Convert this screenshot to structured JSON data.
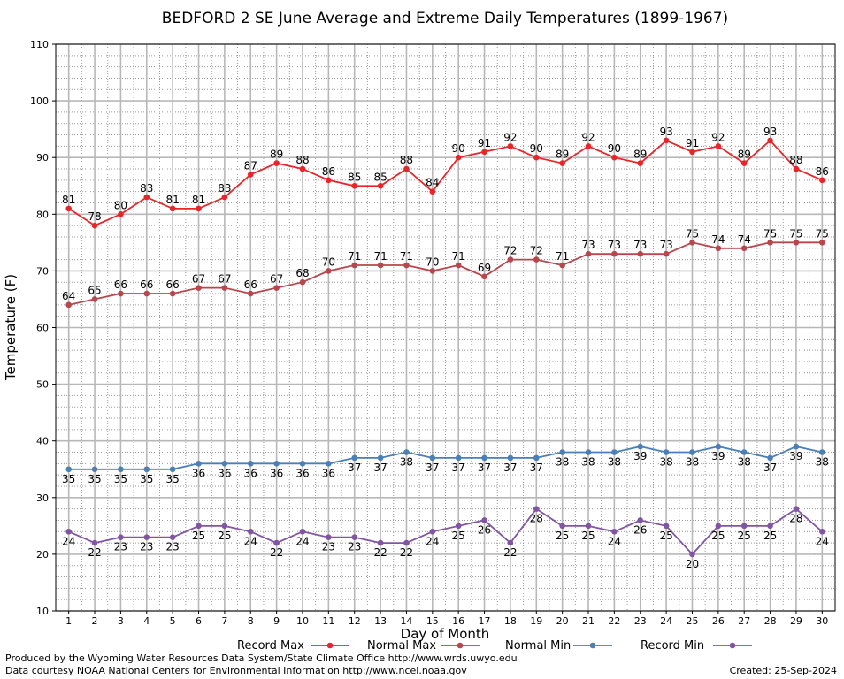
{
  "chart_data": {
    "type": "line",
    "title": "BEDFORD 2 SE June Average and Extreme Daily Temperatures (1899-1967)",
    "xlabel": "Day of Month",
    "ylabel": "Temperature (F)",
    "ylim": [
      10,
      110
    ],
    "xlim": [
      0.5,
      30.5
    ],
    "x": [
      1,
      2,
      3,
      4,
      5,
      6,
      7,
      8,
      9,
      10,
      11,
      12,
      13,
      14,
      15,
      16,
      17,
      18,
      19,
      20,
      21,
      22,
      23,
      24,
      25,
      26,
      27,
      28,
      29,
      30
    ],
    "y_ticks": [
      10,
      20,
      30,
      40,
      50,
      60,
      70,
      80,
      90,
      100,
      110
    ],
    "grid": true,
    "legend_position": "bottom",
    "series": [
      {
        "name": "Record Max",
        "color": "#e8262a",
        "label_pos": "above",
        "values": [
          81,
          78,
          80,
          83,
          81,
          81,
          83,
          87,
          89,
          88,
          86,
          85,
          85,
          88,
          84,
          90,
          91,
          92,
          90,
          89,
          92,
          90,
          89,
          93,
          91,
          92,
          89,
          93,
          88,
          86
        ]
      },
      {
        "name": "Normal Max",
        "color": "#b8474d",
        "label_pos": "above",
        "values": [
          64,
          65,
          66,
          66,
          66,
          67,
          67,
          66,
          67,
          68,
          70,
          71,
          71,
          71,
          70,
          71,
          69,
          72,
          72,
          71,
          73,
          73,
          73,
          73,
          75,
          74,
          74,
          75,
          75,
          75
        ]
      },
      {
        "name": "Normal Min",
        "color": "#4a7fb8",
        "label_pos": "below",
        "values": [
          35,
          35,
          35,
          35,
          35,
          36,
          36,
          36,
          36,
          36,
          36,
          37,
          37,
          38,
          37,
          37,
          37,
          37,
          37,
          38,
          38,
          38,
          39,
          38,
          38,
          39,
          38,
          37,
          39,
          38
        ]
      },
      {
        "name": "Record Min",
        "color": "#8155a3",
        "label_pos": "below",
        "values": [
          24,
          22,
          23,
          23,
          23,
          25,
          25,
          24,
          22,
          24,
          23,
          23,
          22,
          22,
          24,
          25,
          26,
          22,
          28,
          25,
          25,
          24,
          26,
          25,
          20,
          25,
          25,
          25,
          28,
          24
        ]
      }
    ]
  },
  "footer": {
    "producer": "Produced by the Wyoming Water Resources Data System/State Climate Office http://www.wrds.uwyo.edu",
    "courtesy": "Data courtesy NOAA National Centers for Environmental Information http://www.ncei.noaa.gov",
    "created": "Created:  25-Sep-2024"
  }
}
